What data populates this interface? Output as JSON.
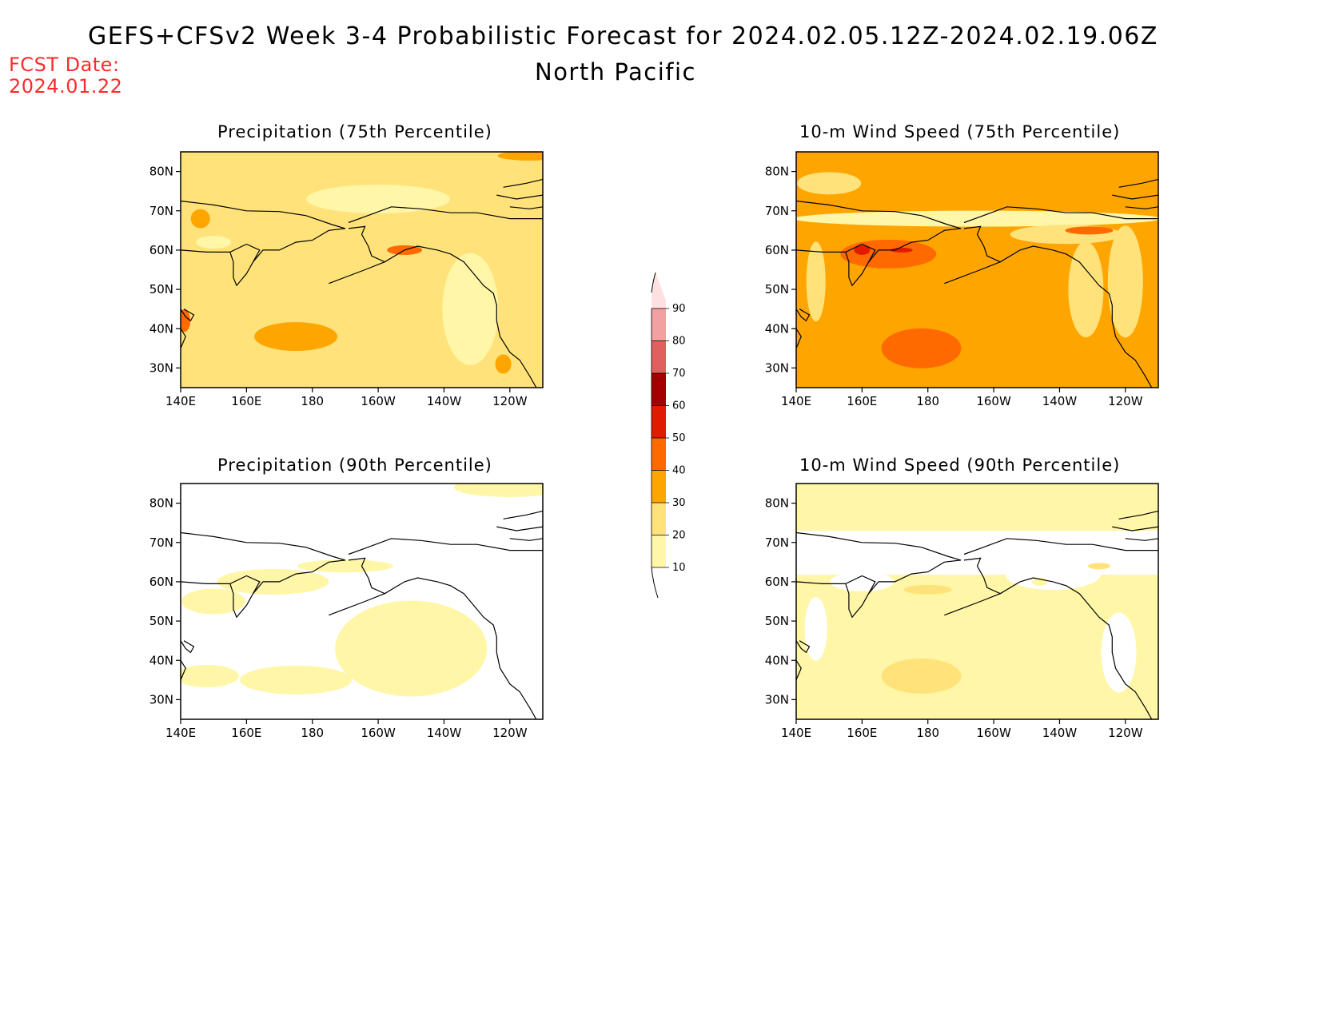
{
  "header": {
    "title": "GEFS+CFSv2 Week 3-4 Probabilistic Forecast for 2024.02.05.12Z-2024.02.19.06Z",
    "subtitle": "North Pacific",
    "fcst_label": "FCST Date:",
    "fcst_date": "2024.01.22"
  },
  "axes": {
    "lon_ticks": [
      "140E",
      "160E",
      "180",
      "160W",
      "140W",
      "120W"
    ],
    "lat_ticks": [
      "80N",
      "70N",
      "60N",
      "50N",
      "40N",
      "30N"
    ]
  },
  "colorbar": {
    "levels": [
      "10",
      "20",
      "30",
      "40",
      "50",
      "60",
      "70",
      "80",
      "90"
    ],
    "colors": [
      "#fff6a8",
      "#ffe37a",
      "#ffa500",
      "#ff6a00",
      "#e11b00",
      "#a50000",
      "#e06060",
      "#f2a0a0",
      "#fde0e0"
    ]
  },
  "panels": [
    {
      "title": "Precipitation (75th Percentile)",
      "variable": "precipitation",
      "percentile": "75th",
      "dominant_category": "20-30"
    },
    {
      "title": "10-m Wind Speed (75th Percentile)",
      "variable": "wind",
      "percentile": "75th",
      "dominant_category": "30-40"
    },
    {
      "title": "Precipitation (90th Percentile)",
      "variable": "precipitation",
      "percentile": "90th",
      "dominant_category": "10-20"
    },
    {
      "title": "10-m Wind Speed (90th Percentile)",
      "variable": "wind",
      "percentile": "90th",
      "dominant_category": "10-20"
    }
  ]
}
